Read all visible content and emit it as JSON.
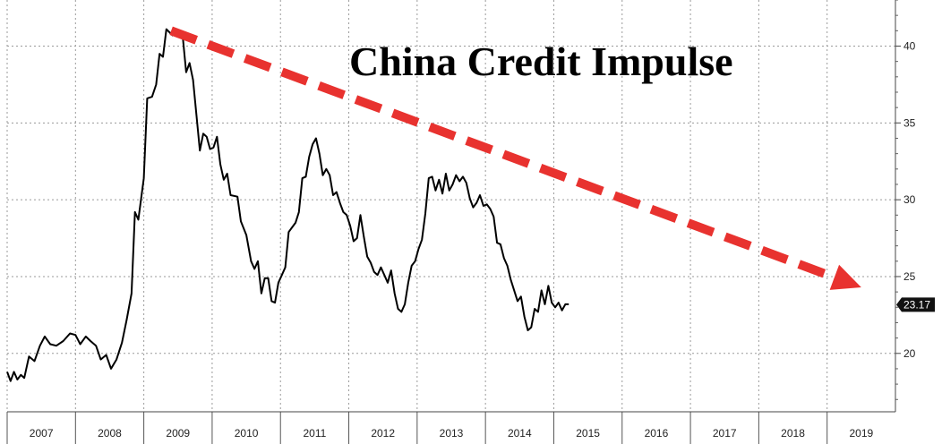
{
  "chart_data": {
    "type": "line",
    "title": "China Credit Impulse",
    "xlabel": "",
    "ylabel": "",
    "x_categories": [
      "2007",
      "2008",
      "2009",
      "2010",
      "2011",
      "2012",
      "2013",
      "2014",
      "2015",
      "2016",
      "2017",
      "2018",
      "2019"
    ],
    "yticks": [
      20,
      25,
      30,
      35,
      40
    ],
    "ylim": [
      16.2,
      43.0
    ],
    "xlim": [
      2007.0,
      2020.0
    ],
    "grid": true,
    "last_value_label": "23.17",
    "series": [
      {
        "name": "",
        "color": "#000000",
        "points": [
          [
            2007.0,
            18.8
          ],
          [
            2007.05,
            18.2
          ],
          [
            2007.1,
            18.8
          ],
          [
            2007.15,
            18.3
          ],
          [
            2007.2,
            18.6
          ],
          [
            2007.25,
            18.4
          ],
          [
            2007.32,
            19.8
          ],
          [
            2007.4,
            19.5
          ],
          [
            2007.48,
            20.5
          ],
          [
            2007.55,
            21.1
          ],
          [
            2007.63,
            20.6
          ],
          [
            2007.72,
            20.5
          ],
          [
            2007.82,
            20.8
          ],
          [
            2007.92,
            21.3
          ],
          [
            2008.0,
            21.2
          ],
          [
            2008.07,
            20.6
          ],
          [
            2008.15,
            21.1
          ],
          [
            2008.22,
            20.8
          ],
          [
            2008.3,
            20.5
          ],
          [
            2008.37,
            19.6
          ],
          [
            2008.45,
            19.9
          ],
          [
            2008.52,
            19.0
          ],
          [
            2008.6,
            19.6
          ],
          [
            2008.68,
            20.7
          ],
          [
            2008.75,
            22.2
          ],
          [
            2008.82,
            23.9
          ],
          [
            2008.87,
            29.2
          ],
          [
            2008.92,
            28.7
          ],
          [
            2009.0,
            31.4
          ],
          [
            2009.05,
            36.6
          ],
          [
            2009.12,
            36.7
          ],
          [
            2009.18,
            37.5
          ],
          [
            2009.23,
            39.5
          ],
          [
            2009.28,
            39.3
          ],
          [
            2009.33,
            41.1
          ],
          [
            2009.42,
            40.7
          ],
          [
            2009.47,
            40.8
          ],
          [
            2009.52,
            40.9
          ],
          [
            2009.57,
            40.6
          ],
          [
            2009.62,
            38.3
          ],
          [
            2009.67,
            38.9
          ],
          [
            2009.72,
            37.8
          ],
          [
            2009.77,
            35.5
          ],
          [
            2009.82,
            33.2
          ],
          [
            2009.87,
            34.3
          ],
          [
            2009.92,
            34.1
          ],
          [
            2009.97,
            33.3
          ],
          [
            2010.02,
            33.4
          ],
          [
            2010.07,
            34.1
          ],
          [
            2010.12,
            32.3
          ],
          [
            2010.17,
            31.3
          ],
          [
            2010.22,
            31.7
          ],
          [
            2010.27,
            30.3
          ],
          [
            2010.37,
            30.2
          ],
          [
            2010.42,
            28.6
          ],
          [
            2010.5,
            27.7
          ],
          [
            2010.57,
            26.0
          ],
          [
            2010.62,
            25.5
          ],
          [
            2010.67,
            26.0
          ],
          [
            2010.72,
            23.9
          ],
          [
            2010.77,
            24.9
          ],
          [
            2010.82,
            24.9
          ],
          [
            2010.87,
            23.4
          ],
          [
            2010.92,
            23.3
          ],
          [
            2010.97,
            24.6
          ],
          [
            2011.02,
            25.1
          ],
          [
            2011.07,
            25.6
          ],
          [
            2011.12,
            27.9
          ],
          [
            2011.17,
            28.2
          ],
          [
            2011.22,
            28.5
          ],
          [
            2011.27,
            29.2
          ],
          [
            2011.32,
            31.4
          ],
          [
            2011.37,
            31.5
          ],
          [
            2011.42,
            32.8
          ],
          [
            2011.47,
            33.6
          ],
          [
            2011.52,
            34.0
          ],
          [
            2011.57,
            33.0
          ],
          [
            2011.62,
            31.6
          ],
          [
            2011.67,
            32.0
          ],
          [
            2011.72,
            31.6
          ],
          [
            2011.77,
            30.3
          ],
          [
            2011.82,
            30.5
          ],
          [
            2011.87,
            29.8
          ],
          [
            2011.92,
            29.2
          ],
          [
            2011.97,
            29.0
          ],
          [
            2012.02,
            28.3
          ],
          [
            2012.07,
            27.3
          ],
          [
            2012.12,
            27.5
          ],
          [
            2012.17,
            29.0
          ],
          [
            2012.22,
            27.6
          ],
          [
            2012.27,
            26.3
          ],
          [
            2012.32,
            25.9
          ],
          [
            2012.37,
            25.3
          ],
          [
            2012.42,
            25.1
          ],
          [
            2012.47,
            25.6
          ],
          [
            2012.52,
            25.1
          ],
          [
            2012.57,
            24.6
          ],
          [
            2012.62,
            25.4
          ],
          [
            2012.67,
            23.9
          ],
          [
            2012.72,
            22.9
          ],
          [
            2012.77,
            22.7
          ],
          [
            2012.82,
            23.2
          ],
          [
            2012.87,
            24.6
          ],
          [
            2012.92,
            25.7
          ],
          [
            2012.97,
            26.0
          ],
          [
            2013.02,
            26.8
          ],
          [
            2013.07,
            27.4
          ],
          [
            2013.12,
            29.1
          ],
          [
            2013.17,
            31.4
          ],
          [
            2013.22,
            31.5
          ],
          [
            2013.27,
            30.6
          ],
          [
            2013.32,
            31.3
          ],
          [
            2013.37,
            30.4
          ],
          [
            2013.42,
            31.7
          ],
          [
            2013.47,
            30.6
          ],
          [
            2013.52,
            31.0
          ],
          [
            2013.57,
            31.6
          ],
          [
            2013.62,
            31.2
          ],
          [
            2013.67,
            31.5
          ],
          [
            2013.72,
            31.1
          ],
          [
            2013.77,
            30.1
          ],
          [
            2013.82,
            29.5
          ],
          [
            2013.87,
            29.8
          ],
          [
            2013.92,
            30.3
          ],
          [
            2013.97,
            29.6
          ],
          [
            2014.02,
            29.7
          ],
          [
            2014.07,
            29.4
          ],
          [
            2014.12,
            28.9
          ],
          [
            2014.17,
            27.2
          ],
          [
            2014.22,
            27.1
          ],
          [
            2014.27,
            26.2
          ],
          [
            2014.32,
            25.7
          ],
          [
            2014.37,
            24.8
          ],
          [
            2014.42,
            24.1
          ],
          [
            2014.47,
            23.4
          ],
          [
            2014.52,
            23.7
          ],
          [
            2014.57,
            22.4
          ],
          [
            2014.62,
            21.5
          ],
          [
            2014.67,
            21.7
          ],
          [
            2014.72,
            22.9
          ],
          [
            2014.77,
            22.7
          ],
          [
            2014.82,
            24.1
          ],
          [
            2014.87,
            23.2
          ],
          [
            2014.92,
            24.4
          ],
          [
            2014.97,
            23.3
          ],
          [
            2015.02,
            23.0
          ],
          [
            2015.07,
            23.3
          ],
          [
            2015.12,
            22.8
          ],
          [
            2015.17,
            23.2
          ],
          [
            2015.22,
            23.2
          ]
        ]
      }
    ],
    "annotations": [
      {
        "type": "arrow",
        "style": "dashed",
        "color": "#e8322f",
        "from": [
          2009.4,
          41.0
        ],
        "to": [
          2019.5,
          24.3
        ]
      }
    ]
  }
}
